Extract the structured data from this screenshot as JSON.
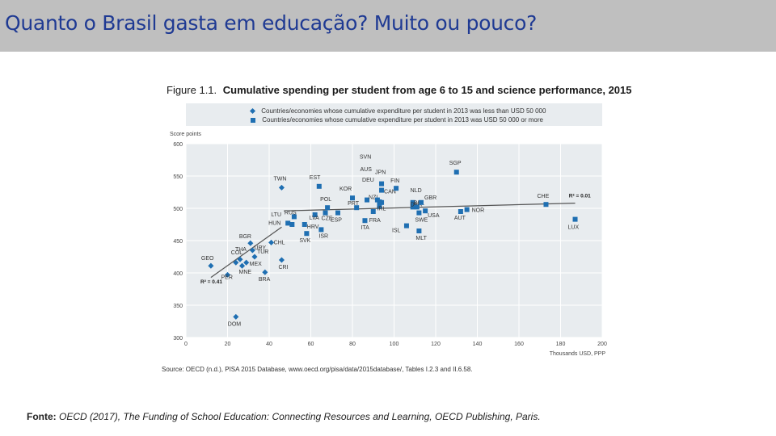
{
  "slide": {
    "title": "Quanto o Brasil gasta em educação? Muito ou pouco?"
  },
  "figure": {
    "number": "Figure 1.1.",
    "title": "Cumulative spending per student from age 6 to 15 and science performance, 2015",
    "source": "Source: OECD (n.d.), PISA 2015 Database, www.oecd.org/pisa/data/2015database/, Tables I.2.3 and II.6.58."
  },
  "footer": {
    "label": "Fonte:",
    "text": "OECD (2017), The Funding of School Education: Connecting Resources and Learning, OECD Publishing, Paris."
  },
  "colors": {
    "marker": "#1f6fb2",
    "title_text": "#1f3a93",
    "title_bar": "#bfbfbf",
    "legend_bg": "#e8ecef",
    "plot_bg": "#e8ecef"
  },
  "chart_data": {
    "type": "scatter",
    "ylabel": "Score points",
    "xlabel": "Thousands USD, PPP",
    "xlim": [
      0,
      200
    ],
    "ylim": [
      300,
      600
    ],
    "xticks": [
      0,
      20,
      40,
      60,
      80,
      100,
      120,
      140,
      160,
      180,
      200
    ],
    "yticks": [
      300,
      350,
      400,
      450,
      500,
      550,
      600
    ],
    "grid": true,
    "legend_position": "top",
    "series": [
      {
        "name": "Countries/economies whose cumulative expenditure per student in 2013 was less than USD 50 000",
        "marker": "diamond",
        "points": [
          {
            "label": "GEO",
            "x": 12,
            "y": 411
          },
          {
            "label": "PER",
            "x": 20,
            "y": 397
          },
          {
            "label": "COL",
            "x": 24,
            "y": 416
          },
          {
            "label": "THA",
            "x": 26,
            "y": 421
          },
          {
            "label": "MNE",
            "x": 27,
            "y": 411
          },
          {
            "label": "MEX",
            "x": 29,
            "y": 416
          },
          {
            "label": "BGR",
            "x": 31,
            "y": 446
          },
          {
            "label": "URY",
            "x": 32,
            "y": 435
          },
          {
            "label": "TUR",
            "x": 33,
            "y": 425
          },
          {
            "label": "BRA",
            "x": 38,
            "y": 401
          },
          {
            "label": "CHL",
            "x": 41,
            "y": 447
          },
          {
            "label": "DOM",
            "x": 24,
            "y": 332
          },
          {
            "label": "CRI",
            "x": 46,
            "y": 420
          },
          {
            "label": "TWN",
            "x": 46,
            "y": 532
          }
        ],
        "trendline": {
          "x": [
            12,
            46
          ],
          "y": [
            393,
            471
          ],
          "r2_label": "R² = 0.41"
        }
      },
      {
        "name": "Countries/economies whose cumulative expenditure per student in 2013 was USD 50 000 or more",
        "marker": "square",
        "points": [
          {
            "label": "LTU",
            "x": 51,
            "y": 475
          },
          {
            "label": "HUN",
            "x": 49,
            "y": 477
          },
          {
            "label": "RUS",
            "x": 52,
            "y": 487
          },
          {
            "label": "HRV",
            "x": 57,
            "y": 475
          },
          {
            "label": "SVK",
            "x": 58,
            "y": 461
          },
          {
            "label": "LVA",
            "x": 62,
            "y": 490
          },
          {
            "label": "ISR",
            "x": 65,
            "y": 467
          },
          {
            "label": "CZE",
            "x": 67,
            "y": 493
          },
          {
            "label": "EST",
            "x": 64,
            "y": 534
          },
          {
            "label": "POL",
            "x": 68,
            "y": 501
          },
          {
            "label": "ESP",
            "x": 73,
            "y": 493
          },
          {
            "label": "KOR",
            "x": 80,
            "y": 516
          },
          {
            "label": "PRT",
            "x": 82,
            "y": 501
          },
          {
            "label": "NZL",
            "x": 87,
            "y": 513
          },
          {
            "label": "ITA",
            "x": 86,
            "y": 481
          },
          {
            "label": "SVN",
            "x": 92,
            "y": 513
          },
          {
            "label": "AUS",
            "x": 93,
            "y": 510
          },
          {
            "label": "DEU",
            "x": 94,
            "y": 509
          },
          {
            "label": "IRL",
            "x": 93,
            "y": 503
          },
          {
            "label": "FRA",
            "x": 90,
            "y": 495
          },
          {
            "label": "JPN",
            "x": 94,
            "y": 538
          },
          {
            "label": "CAN",
            "x": 94,
            "y": 528
          },
          {
            "label": "FIN",
            "x": 101,
            "y": 531
          },
          {
            "label": "ISL",
            "x": 106,
            "y": 473
          },
          {
            "label": "NLD",
            "x": 109,
            "y": 509
          },
          {
            "label": "DNK",
            "x": 109,
            "y": 502
          },
          {
            "label": "BEL",
            "x": 111,
            "y": 502
          },
          {
            "label": "SWE",
            "x": 112,
            "y": 493
          },
          {
            "label": "MLT",
            "x": 112,
            "y": 465
          },
          {
            "label": "GBR",
            "x": 113,
            "y": 509
          },
          {
            "label": "USA",
            "x": 115,
            "y": 496
          },
          {
            "label": "SGP",
            "x": 130,
            "y": 556
          },
          {
            "label": "AUT",
            "x": 132,
            "y": 495
          },
          {
            "label": "NOR",
            "x": 135,
            "y": 498
          },
          {
            "label": "CHE",
            "x": 173,
            "y": 506
          },
          {
            "label": "LUX",
            "x": 187,
            "y": 483
          }
        ],
        "trendline": {
          "x": [
            47,
            187
          ],
          "y": [
            496,
            508
          ],
          "r2_label": "R² = 0.01"
        }
      }
    ]
  }
}
